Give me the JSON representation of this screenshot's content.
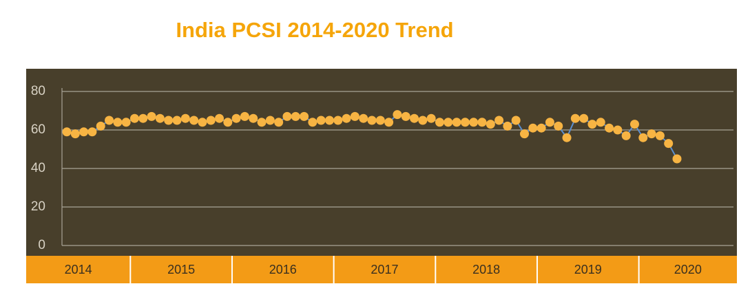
{
  "chart_data": {
    "type": "line",
    "title": "India PCSI 2014-2020 Trend",
    "categories": [
      "2014",
      "2014",
      "2014",
      "2014",
      "2014",
      "2014",
      "2014",
      "2014",
      "2015",
      "2015",
      "2015",
      "2015",
      "2015",
      "2015",
      "2015",
      "2015",
      "2015",
      "2015",
      "2015",
      "2015",
      "2016",
      "2016",
      "2016",
      "2016",
      "2016",
      "2016",
      "2016",
      "2016",
      "2016",
      "2016",
      "2016",
      "2016",
      "2017",
      "2017",
      "2017",
      "2017",
      "2017",
      "2017",
      "2017",
      "2017",
      "2017",
      "2017",
      "2017",
      "2017",
      "2018",
      "2018",
      "2018",
      "2018",
      "2018",
      "2018",
      "2018",
      "2018",
      "2018",
      "2018",
      "2018",
      "2018",
      "2019",
      "2019",
      "2019",
      "2019",
      "2019",
      "2019",
      "2019",
      "2019",
      "2019",
      "2019",
      "2019",
      "2019",
      "2020",
      "2020",
      "2020",
      "2020",
      "2020"
    ],
    "series": [
      {
        "name": "PCSI",
        "color": "#5b8fd0",
        "marker_color": "#f7b443",
        "values": [
          59,
          58,
          59,
          59,
          62,
          65,
          64,
          64,
          66,
          66,
          67,
          66,
          65,
          65,
          66,
          65,
          64,
          65,
          66,
          64,
          66,
          67,
          66,
          64,
          65,
          64,
          67,
          67,
          67,
          64,
          65,
          65,
          65,
          66,
          67,
          66,
          65,
          65,
          64,
          68,
          67,
          66,
          65,
          66,
          64,
          64,
          64,
          64,
          64,
          64,
          63,
          65,
          62,
          65,
          58,
          61,
          61,
          64,
          62,
          56,
          66,
          66,
          63,
          64,
          61,
          60,
          57,
          63,
          56,
          58,
          57,
          53,
          45
        ]
      }
    ],
    "ylim": [
      0,
      80
    ],
    "yticks": [
      0,
      20,
      40,
      60,
      80
    ],
    "grid": true
  }
}
